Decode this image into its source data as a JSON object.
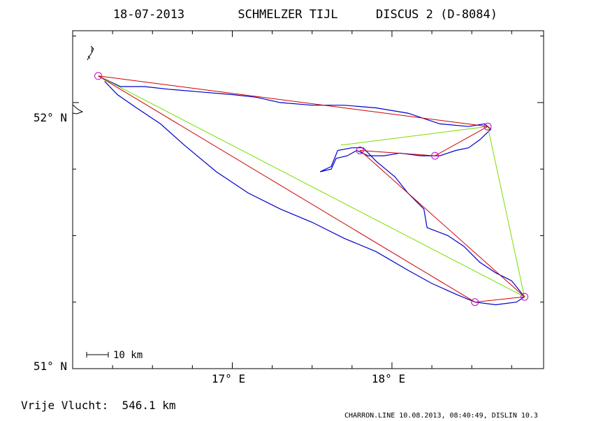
{
  "header": {
    "date": "18-07-2013",
    "pilot": "SCHMELZER TIJL",
    "glider": "DISCUS 2 (D-8084)"
  },
  "axes": {
    "y_ticks": [
      {
        "value": 52,
        "label": "52° N"
      },
      {
        "value": 51,
        "label": "51° N"
      }
    ],
    "x_ticks": [
      {
        "value": 17,
        "label": "17° E"
      },
      {
        "value": 18,
        "label": "18° E"
      }
    ],
    "lon_range": [
      16.0,
      18.95
    ],
    "lat_range": [
      51.0,
      52.27
    ]
  },
  "scale_bar": {
    "label": "10 km"
  },
  "footer": {
    "result": "Vrije Vlucht:  546.1 km",
    "credit": "CHARRON.LINE 10.08.2013, 08:40:49, DISLIN 10.3"
  },
  "colors": {
    "track": "#0000cc",
    "task_line": "#cc0000",
    "alt_line": "#77dd00",
    "turnpoint": "#cc00cc",
    "frame": "#000000"
  },
  "turnpoints": [
    {
      "lon": 16.16,
      "lat": 52.1
    },
    {
      "lon": 18.6,
      "lat": 51.91
    },
    {
      "lon": 18.27,
      "lat": 51.8
    },
    {
      "lon": 17.8,
      "lat": 51.82
    },
    {
      "lon": 18.83,
      "lat": 51.27
    },
    {
      "lon": 18.52,
      "lat": 51.25
    }
  ],
  "task_path": [
    {
      "lon": 16.16,
      "lat": 52.1
    },
    {
      "lon": 18.6,
      "lat": 51.91
    },
    {
      "lon": 18.27,
      "lat": 51.8
    },
    {
      "lon": 17.8,
      "lat": 51.82
    },
    {
      "lon": 18.83,
      "lat": 51.27
    },
    {
      "lon": 18.52,
      "lat": 51.25
    },
    {
      "lon": 16.16,
      "lat": 52.1
    }
  ],
  "alt_path": [
    {
      "lon": 16.16,
      "lat": 52.1
    },
    {
      "lon": 18.83,
      "lat": 51.27
    },
    {
      "lon": 18.6,
      "lat": 51.91
    },
    {
      "lon": 17.68,
      "lat": 51.84
    }
  ],
  "track": [
    {
      "lon": 16.16,
      "lat": 52.1
    },
    {
      "lon": 16.3,
      "lat": 52.06
    },
    {
      "lon": 16.45,
      "lat": 52.06
    },
    {
      "lon": 16.6,
      "lat": 52.05
    },
    {
      "lon": 16.8,
      "lat": 52.04
    },
    {
      "lon": 17.0,
      "lat": 52.03
    },
    {
      "lon": 17.15,
      "lat": 52.02
    },
    {
      "lon": 17.3,
      "lat": 52.0
    },
    {
      "lon": 17.5,
      "lat": 51.99
    },
    {
      "lon": 17.7,
      "lat": 51.99
    },
    {
      "lon": 17.9,
      "lat": 51.98
    },
    {
      "lon": 18.1,
      "lat": 51.96
    },
    {
      "lon": 18.3,
      "lat": 51.92
    },
    {
      "lon": 18.48,
      "lat": 51.91
    },
    {
      "lon": 18.58,
      "lat": 51.92
    },
    {
      "lon": 18.62,
      "lat": 51.9
    },
    {
      "lon": 18.55,
      "lat": 51.86
    },
    {
      "lon": 18.48,
      "lat": 51.83
    },
    {
      "lon": 18.4,
      "lat": 51.82
    },
    {
      "lon": 18.3,
      "lat": 51.8
    },
    {
      "lon": 18.18,
      "lat": 51.8
    },
    {
      "lon": 18.05,
      "lat": 51.81
    },
    {
      "lon": 17.95,
      "lat": 51.8
    },
    {
      "lon": 17.85,
      "lat": 51.8
    },
    {
      "lon": 17.78,
      "lat": 51.82
    },
    {
      "lon": 17.72,
      "lat": 51.8
    },
    {
      "lon": 17.65,
      "lat": 51.79
    },
    {
      "lon": 17.62,
      "lat": 51.75
    },
    {
      "lon": 17.55,
      "lat": 51.74
    },
    {
      "lon": 17.62,
      "lat": 51.76
    },
    {
      "lon": 17.66,
      "lat": 51.82
    },
    {
      "lon": 17.75,
      "lat": 51.83
    },
    {
      "lon": 17.82,
      "lat": 51.83
    },
    {
      "lon": 17.9,
      "lat": 51.78
    },
    {
      "lon": 18.02,
      "lat": 51.72
    },
    {
      "lon": 18.1,
      "lat": 51.66
    },
    {
      "lon": 18.2,
      "lat": 51.6
    },
    {
      "lon": 18.22,
      "lat": 51.53
    },
    {
      "lon": 18.35,
      "lat": 51.5
    },
    {
      "lon": 18.45,
      "lat": 51.46
    },
    {
      "lon": 18.55,
      "lat": 51.4
    },
    {
      "lon": 18.65,
      "lat": 51.36
    },
    {
      "lon": 18.75,
      "lat": 51.33
    },
    {
      "lon": 18.83,
      "lat": 51.27
    },
    {
      "lon": 18.78,
      "lat": 51.25
    },
    {
      "lon": 18.65,
      "lat": 51.24
    },
    {
      "lon": 18.52,
      "lat": 51.25
    },
    {
      "lon": 18.4,
      "lat": 51.28
    },
    {
      "lon": 18.25,
      "lat": 51.32
    },
    {
      "lon": 18.1,
      "lat": 51.37
    },
    {
      "lon": 17.9,
      "lat": 51.44
    },
    {
      "lon": 17.7,
      "lat": 51.49
    },
    {
      "lon": 17.5,
      "lat": 51.55
    },
    {
      "lon": 17.3,
      "lat": 51.6
    },
    {
      "lon": 17.1,
      "lat": 51.66
    },
    {
      "lon": 16.9,
      "lat": 51.74
    },
    {
      "lon": 16.7,
      "lat": 51.84
    },
    {
      "lon": 16.55,
      "lat": 51.92
    },
    {
      "lon": 16.4,
      "lat": 51.98
    },
    {
      "lon": 16.28,
      "lat": 52.03
    },
    {
      "lon": 16.2,
      "lat": 52.08
    }
  ]
}
